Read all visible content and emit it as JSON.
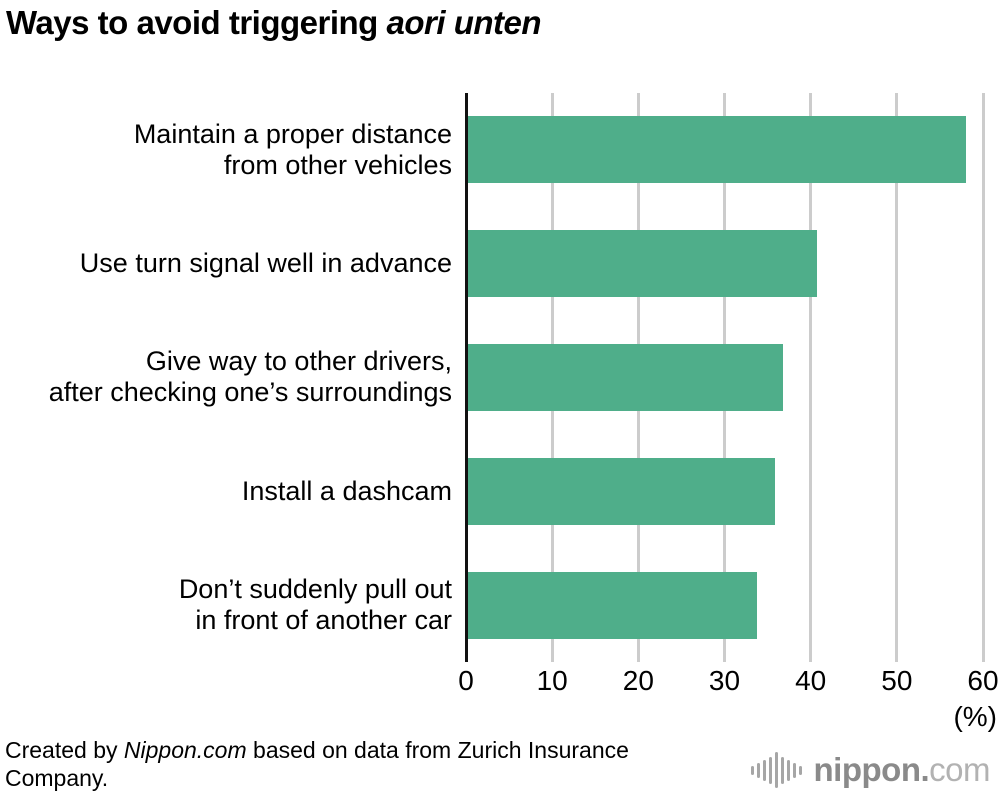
{
  "title": {
    "text": "Ways to avoid triggering ",
    "italic": "aori unten"
  },
  "chart_data": {
    "type": "bar",
    "orientation": "horizontal",
    "title": "Ways to avoid triggering aori unten",
    "categories": [
      [
        "Maintain a proper distance",
        "from other vehicles"
      ],
      [
        "Use turn signal well in advance"
      ],
      [
        "Give way to other drivers,",
        "after checking one’s surroundings"
      ],
      [
        "Install a dashcam"
      ],
      [
        "Don’t suddenly pull out",
        "in front of another car"
      ]
    ],
    "values": [
      57.8,
      40.5,
      36.6,
      35.6,
      33.5
    ],
    "xlim": [
      0,
      60
    ],
    "xticks": [
      0,
      10,
      20,
      30,
      40,
      50,
      60
    ],
    "xlabel": "(%)",
    "grid": true,
    "legend": "none",
    "bar_color": "#4FAE8A",
    "grid_color": "#cccccc",
    "axis_color": "#111111"
  },
  "footer": {
    "credit_prefix": "Created by ",
    "credit_source": "Nippon.com",
    "credit_suffix": " based on data from Zurich Insurance Company."
  },
  "logo": {
    "name_bold": "nippon.",
    "name_light": "com",
    "icon": "waveform-icon",
    "color_bold": "#8a8a8a",
    "color_light": "#b2b2b2",
    "icon_bar_heights": [
      9,
      15,
      21,
      27,
      36,
      27,
      21,
      15,
      9
    ]
  }
}
